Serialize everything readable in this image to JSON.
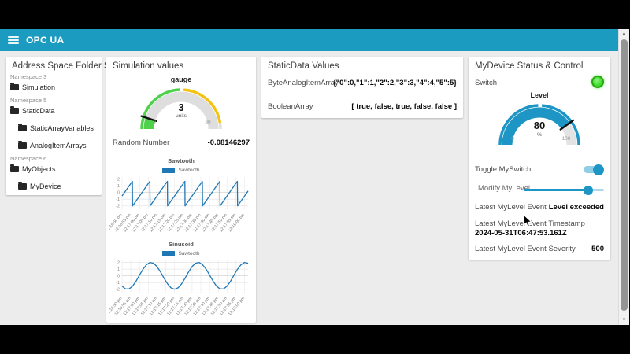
{
  "header": {
    "title": "OPC UA",
    "menu_icon": "hamburger-icon"
  },
  "colors": {
    "appbar": "#1b9bc0",
    "widget_blue": "#1d96c6",
    "chart_line": "#1f77b4",
    "gauge_green": "#4fd14c",
    "gauge_yellow": "#f3c311",
    "gauge_track": "#dedede",
    "led_green": "#3ee02c",
    "page_bg": "#ececec"
  },
  "cards": {
    "address_space": {
      "title": "Address Space Folder Str...",
      "items": [
        {
          "type": "namespace",
          "label": "Namespace 3",
          "indent": 0
        },
        {
          "type": "folder",
          "label": "Simulation",
          "indent": 0
        },
        {
          "type": "namespace",
          "label": "Namespace 5",
          "indent": 0
        },
        {
          "type": "folder",
          "label": "StaticData",
          "indent": 0
        },
        {
          "type": "folder",
          "label": "StaticArrayVariables",
          "indent": 1
        },
        {
          "type": "folder",
          "label": "AnalogItemArrays",
          "indent": 1
        },
        {
          "type": "namespace",
          "label": "Namespace 6",
          "indent": 0
        },
        {
          "type": "folder",
          "label": "MyObjects",
          "indent": 0
        },
        {
          "type": "folder",
          "label": "MyDevice",
          "indent": 1
        }
      ]
    },
    "simulation": {
      "title": "Simulation values",
      "random_number": {
        "label": "Random Number",
        "value": "-0.08146297"
      }
    },
    "static_data": {
      "title": "StaticData Values",
      "rows": [
        {
          "label": "ByteAnalogItemArray",
          "value": "{\"0\":0,\"1\":1,\"2\":2,\"3\":3,\"4\":4,\"5\":5}"
        },
        {
          "label": "BooleanArray",
          "value": "[ true, false, true, false, false ]"
        }
      ]
    },
    "mydevice": {
      "title": "MyDevice Status & Control",
      "switch_label": "Switch",
      "switch_state": "on",
      "toggle_label": "Toggle MySwitch",
      "toggle_state": "on",
      "slider": {
        "label": "Modify MyLevel",
        "fraction": 0.8
      },
      "rows": [
        {
          "label": "Latest MyLevel Event",
          "value": "Level exceeded"
        },
        {
          "label": "Latest MyLevel Event Timestamp",
          "value": "2024-05-31T06:47:53.161Z"
        },
        {
          "label": "Latest MyLevel Event Severity",
          "value": "500"
        }
      ]
    }
  },
  "chart_data": [
    {
      "type": "gauge",
      "title": "gauge",
      "value": 3,
      "units": "units",
      "min": 0,
      "max": 30,
      "tick_labels": [
        "0",
        "30"
      ],
      "fill_fraction": 0.1,
      "band_color": "#4fd14c",
      "band_bg": "#dedede",
      "sectors": [
        {
          "from": 0.0,
          "to": 0.49,
          "color": "#4fd14c"
        },
        {
          "from": 0.52,
          "to": 0.95,
          "color": "#f3c311"
        },
        {
          "from": 0.95,
          "to": 1.0,
          "color": "#dedede"
        }
      ]
    },
    {
      "type": "gauge",
      "title": "Level",
      "value": 80,
      "units": "%",
      "min": 0,
      "max": 100,
      "tick_labels": [
        "0",
        "100"
      ],
      "fill_fraction": 0.8,
      "band_color": "#1d96c6",
      "band_bg": "#e3e3e3",
      "sectors": [
        {
          "from": 0.0,
          "to": 0.49,
          "color": "#1d96c6"
        },
        {
          "from": 0.52,
          "to": 1.0,
          "color": "#1d96c6"
        }
      ]
    },
    {
      "type": "line",
      "title": "Sawtooth",
      "legend": "Sawtooth",
      "line_color": "#1f77b4",
      "x_labels": [
        "12:16:50 pm",
        "12:16:55 pm",
        "12:17:00 pm",
        "12:17:05 pm",
        "12:17:10 pm",
        "12:17:15 pm",
        "12:17:20 pm",
        "12:17:25 pm",
        "12:17:30 pm",
        "12:17:35 pm",
        "12:17:40 pm",
        "12:17:45 pm",
        "12:17:50 pm",
        "12:17:55 pm",
        "12:18:00 pm"
      ],
      "x_label_step_s": 5,
      "t_end_s": 72,
      "y_ticks": [
        2,
        1,
        0,
        -1,
        -2
      ],
      "ylim": [
        -2.5,
        2.3
      ],
      "grid": true,
      "legend_position": "top",
      "points": [
        [
          0,
          -0.52
        ],
        [
          2,
          0.22
        ],
        [
          4,
          0.96
        ],
        [
          5.9,
          1.66
        ],
        [
          6,
          -2
        ],
        [
          8,
          -1.26
        ],
        [
          10,
          -0.52
        ],
        [
          12,
          0.22
        ],
        [
          14,
          0.96
        ],
        [
          15.9,
          1.66
        ],
        [
          16,
          -2
        ],
        [
          18,
          -1.26
        ],
        [
          20,
          -0.52
        ],
        [
          22,
          0.22
        ],
        [
          24,
          0.96
        ],
        [
          25.9,
          1.66
        ],
        [
          26,
          -2
        ],
        [
          28,
          -1.26
        ],
        [
          30,
          -0.52
        ],
        [
          32,
          0.22
        ],
        [
          34,
          0.96
        ],
        [
          35.9,
          1.66
        ],
        [
          36,
          -2
        ],
        [
          38,
          -1.26
        ],
        [
          40,
          -0.52
        ],
        [
          42,
          0.22
        ],
        [
          44,
          0.96
        ],
        [
          45.9,
          1.66
        ],
        [
          46,
          -2
        ],
        [
          48,
          -1.26
        ],
        [
          50,
          -0.52
        ],
        [
          52,
          0.22
        ],
        [
          54,
          0.96
        ],
        [
          55.9,
          1.66
        ],
        [
          56,
          -2
        ],
        [
          58,
          -1.26
        ],
        [
          60,
          -0.52
        ],
        [
          62,
          0.22
        ],
        [
          64,
          0.96
        ],
        [
          65.9,
          1.66
        ],
        [
          66,
          -2
        ],
        [
          68,
          -1.26
        ],
        [
          70,
          -0.52
        ],
        [
          72,
          0.22
        ]
      ]
    },
    {
      "type": "line",
      "title": "Sinusoid",
      "legend": "Sawtooth",
      "line_color": "#1f77b4",
      "x_labels": [
        "12:16:50 pm",
        "12:16:55 pm",
        "12:17:00 pm",
        "12:17:05 pm",
        "12:17:10 pm",
        "12:17:15 pm",
        "12:17:20 pm",
        "12:17:25 pm",
        "12:17:30 pm",
        "12:17:35 pm",
        "12:17:40 pm",
        "12:17:45 pm",
        "12:17:50 pm",
        "12:17:55 pm",
        "12:18:00 pm"
      ],
      "x_label_step_s": 5,
      "t_end_s": 72,
      "y_ticks": [
        2,
        1,
        0,
        -1,
        -2
      ],
      "ylim": [
        -2.5,
        2.3
      ],
      "grid": true,
      "legend_position": "top",
      "points": [
        [
          0,
          -1.53
        ],
        [
          2,
          -1.95
        ],
        [
          4,
          -1.95
        ],
        [
          6,
          -1.53
        ],
        [
          8,
          -0.79
        ],
        [
          10,
          0.12
        ],
        [
          12,
          1.0
        ],
        [
          14,
          1.67
        ],
        [
          16,
          1.99
        ],
        [
          18,
          1.88
        ],
        [
          20,
          1.37
        ],
        [
          22,
          0.57
        ],
        [
          24,
          -0.35
        ],
        [
          26,
          -1.19
        ],
        [
          28,
          -1.79
        ],
        [
          30,
          -2.0
        ],
        [
          32,
          -1.79
        ],
        [
          34,
          -1.19
        ],
        [
          36,
          -0.35
        ],
        [
          38,
          0.57
        ],
        [
          40,
          1.37
        ],
        [
          42,
          1.88
        ],
        [
          44,
          1.99
        ],
        [
          46,
          1.67
        ],
        [
          48,
          1.0
        ],
        [
          50,
          0.12
        ],
        [
          52,
          -0.79
        ],
        [
          54,
          -1.53
        ],
        [
          56,
          -1.95
        ],
        [
          58,
          -1.95
        ],
        [
          60,
          -1.53
        ],
        [
          62,
          -0.79
        ],
        [
          64,
          0.12
        ],
        [
          66,
          1.0
        ],
        [
          68,
          1.67
        ],
        [
          70,
          1.99
        ],
        [
          72,
          1.88
        ]
      ]
    }
  ]
}
